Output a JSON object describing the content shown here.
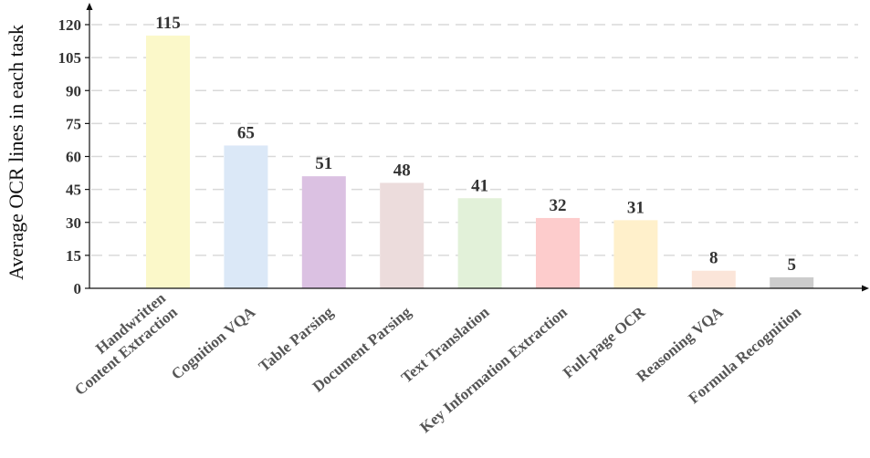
{
  "chart_data": {
    "type": "bar",
    "title": "",
    "xlabel": "",
    "ylabel": "Average OCR lines in each task",
    "ylim": [
      0,
      120
    ],
    "yticks": [
      0,
      15,
      30,
      45,
      60,
      75,
      90,
      105,
      120
    ],
    "grid": true,
    "categories": [
      [
        "Handwritten",
        "Content Extraction"
      ],
      [
        "Cognition VQA"
      ],
      [
        "Table Parsing"
      ],
      [
        "Document Parsing"
      ],
      [
        "Text Translation"
      ],
      [
        "Key Information Extraction"
      ],
      [
        "Full-page OCR"
      ],
      [
        "Reasoning VQA"
      ],
      [
        "Formula Recognition"
      ]
    ],
    "values": [
      115,
      65,
      51,
      48,
      41,
      32,
      31,
      8,
      5
    ],
    "colors": [
      "#fbf8c9",
      "#dbe8f7",
      "#dbc1e2",
      "#ecdcdc",
      "#e2f1d9",
      "#fdcccc",
      "#fff0cb",
      "#fbe5d9",
      "#cccccc"
    ]
  }
}
